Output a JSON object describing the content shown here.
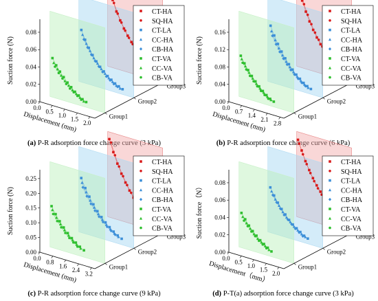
{
  "legend_series": [
    {
      "label": "CT-HA",
      "color": "#d81b1b",
      "marker": "square"
    },
    {
      "label": "SQ-HA",
      "color": "#d81b1b",
      "marker": "circle"
    },
    {
      "label": "CT-LA",
      "color": "#3c8fd8",
      "marker": "square"
    },
    {
      "label": "CC-HA",
      "color": "#3c8fd8",
      "marker": "triangle"
    },
    {
      "label": "CB-HA",
      "color": "#3c8fd8",
      "marker": "diamond"
    },
    {
      "label": "CT-VA",
      "color": "#2fbf2f",
      "marker": "square"
    },
    {
      "label": "CC-VA",
      "color": "#2fbf2f",
      "marker": "triangle"
    },
    {
      "label": "CB-VA",
      "color": "#2fbf2f",
      "marker": "circle"
    }
  ],
  "chart_data": [
    {
      "type": "scatter",
      "panel_letter": "(a)",
      "caption": "P-R adsorption force change curve (3 kPa)",
      "zlabel": "Suction force (N)",
      "xlabel": "Displacement (mm)",
      "z_ticks": [
        "0.00",
        "0.02",
        "0.04",
        "0.06",
        "0.08"
      ],
      "zlim": [
        0,
        0.095
      ],
      "x_ticks": [
        "0.0",
        "0.5",
        "1.0",
        "1.5",
        "2.0"
      ],
      "xlim": [
        0,
        2.2
      ],
      "groups": [
        "Group1",
        "Group2",
        "Group3"
      ],
      "series": [
        {
          "name": "CT-HA",
          "group": 3,
          "x": [
            0.05,
            0.2,
            0.35,
            0.5,
            0.65,
            0.8,
            0.95,
            1.1,
            1.25,
            1.4,
            1.55,
            1.7,
            1.85,
            2.0
          ],
          "y": [
            0.089,
            0.078,
            0.066,
            0.057,
            0.049,
            0.042,
            0.036,
            0.03,
            0.025,
            0.02,
            0.016,
            0.012,
            0.008,
            0.006
          ]
        },
        {
          "name": "SQ-HA",
          "group": 3,
          "x": [
            0.1,
            0.25,
            0.4,
            0.55,
            0.7,
            0.85,
            1.0,
            1.15,
            1.3,
            1.45,
            1.6,
            1.75,
            1.9
          ],
          "y": [
            0.086,
            0.075,
            0.064,
            0.055,
            0.047,
            0.04,
            0.034,
            0.028,
            0.023,
            0.018,
            0.014,
            0.01,
            0.007
          ]
        },
        {
          "name": "CT-LA",
          "group": 2,
          "x": [
            0.1,
            0.25,
            0.4,
            0.55,
            0.7,
            0.85,
            1.0,
            1.15,
            1.3,
            1.45,
            1.6,
            1.75
          ],
          "y": [
            0.06,
            0.05,
            0.042,
            0.035,
            0.029,
            0.024,
            0.02,
            0.016,
            0.013,
            0.01,
            0.008,
            0.006
          ]
        },
        {
          "name": "CC-HA",
          "group": 2,
          "x": [
            0.15,
            0.3,
            0.45,
            0.6,
            0.75,
            0.9,
            1.05,
            1.2,
            1.35,
            1.5,
            1.65
          ],
          "y": [
            0.055,
            0.046,
            0.039,
            0.032,
            0.027,
            0.022,
            0.018,
            0.014,
            0.011,
            0.008,
            0.006
          ]
        },
        {
          "name": "CB-HA",
          "group": 2,
          "x": [
            0.2,
            0.35,
            0.5,
            0.65,
            0.8,
            0.95,
            1.1,
            1.25,
            1.4,
            1.55
          ],
          "y": [
            0.05,
            0.042,
            0.035,
            0.029,
            0.024,
            0.019,
            0.015,
            0.012,
            0.009,
            0.007
          ]
        },
        {
          "name": "CT-VA",
          "group": 1,
          "x": [
            0.1,
            0.25,
            0.4,
            0.55,
            0.7,
            0.85,
            1.0,
            1.15,
            1.3,
            1.45
          ],
          "y": [
            0.045,
            0.038,
            0.032,
            0.027,
            0.022,
            0.018,
            0.014,
            0.011,
            0.008,
            0.006
          ]
        },
        {
          "name": "CC-VA",
          "group": 1,
          "x": [
            0.15,
            0.3,
            0.45,
            0.6,
            0.75,
            0.9,
            1.05,
            1.2,
            1.35
          ],
          "y": [
            0.04,
            0.034,
            0.028,
            0.023,
            0.019,
            0.015,
            0.012,
            0.009,
            0.006
          ]
        },
        {
          "name": "CB-VA",
          "group": 1,
          "x": [
            0.2,
            0.35,
            0.5,
            0.65,
            0.8,
            0.95,
            1.1,
            1.25
          ],
          "y": [
            0.036,
            0.03,
            0.025,
            0.02,
            0.016,
            0.013,
            0.01,
            0.007
          ]
        }
      ]
    },
    {
      "type": "scatter",
      "panel_letter": "(b)",
      "caption": "P-R adsorption force change curve (6 kPa)",
      "zlabel": "Suction force (N)",
      "xlabel": "Displacement (mm)",
      "z_ticks": [
        "0.00",
        "0.04",
        "0.08",
        "0.12",
        "0.16"
      ],
      "zlim": [
        0,
        0.19
      ],
      "x_ticks": [
        "0.0",
        "0.7",
        "1.4",
        "2.1",
        "2.8"
      ],
      "xlim": [
        0,
        3.0
      ],
      "groups": [
        "Group1",
        "Group2",
        "Group3"
      ],
      "series": [
        {
          "name": "CT-HA",
          "group": 3,
          "x": [
            0.1,
            0.3,
            0.5,
            0.7,
            0.9,
            1.1,
            1.3,
            1.5,
            1.7,
            1.9,
            2.1,
            2.3,
            2.5,
            2.7
          ],
          "y": [
            0.18,
            0.155,
            0.132,
            0.112,
            0.095,
            0.08,
            0.067,
            0.056,
            0.046,
            0.037,
            0.029,
            0.022,
            0.016,
            0.012
          ]
        },
        {
          "name": "SQ-HA",
          "group": 3,
          "x": [
            0.2,
            0.4,
            0.6,
            0.8,
            1.0,
            1.2,
            1.4,
            1.6,
            1.8,
            2.0,
            2.2,
            2.4,
            2.6
          ],
          "y": [
            0.172,
            0.148,
            0.126,
            0.107,
            0.09,
            0.076,
            0.063,
            0.052,
            0.042,
            0.034,
            0.026,
            0.019,
            0.014
          ]
        },
        {
          "name": "CT-LA",
          "group": 2,
          "x": [
            0.15,
            0.35,
            0.55,
            0.75,
            0.95,
            1.15,
            1.35,
            1.55,
            1.75,
            1.95,
            2.15,
            2.35
          ],
          "y": [
            0.13,
            0.11,
            0.093,
            0.078,
            0.065,
            0.054,
            0.044,
            0.035,
            0.028,
            0.021,
            0.016,
            0.012
          ]
        },
        {
          "name": "CC-HA",
          "group": 2,
          "x": [
            0.2,
            0.4,
            0.6,
            0.8,
            1.0,
            1.2,
            1.4,
            1.6,
            1.8,
            2.0,
            2.2
          ],
          "y": [
            0.118,
            0.1,
            0.084,
            0.07,
            0.058,
            0.048,
            0.039,
            0.031,
            0.024,
            0.018,
            0.013
          ]
        },
        {
          "name": "CB-HA",
          "group": 2,
          "x": [
            0.25,
            0.45,
            0.65,
            0.85,
            1.05,
            1.25,
            1.45,
            1.65,
            1.85,
            2.05
          ],
          "y": [
            0.108,
            0.091,
            0.076,
            0.063,
            0.052,
            0.042,
            0.034,
            0.027,
            0.02,
            0.015
          ]
        },
        {
          "name": "CT-VA",
          "group": 1,
          "x": [
            0.1,
            0.3,
            0.5,
            0.7,
            0.9,
            1.1,
            1.3,
            1.5,
            1.7,
            1.9
          ],
          "y": [
            0.095,
            0.08,
            0.067,
            0.056,
            0.046,
            0.037,
            0.029,
            0.022,
            0.016,
            0.012
          ]
        },
        {
          "name": "CC-VA",
          "group": 1,
          "x": [
            0.15,
            0.35,
            0.55,
            0.75,
            0.95,
            1.15,
            1.35,
            1.55,
            1.75
          ],
          "y": [
            0.088,
            0.074,
            0.062,
            0.051,
            0.041,
            0.033,
            0.026,
            0.019,
            0.014
          ]
        },
        {
          "name": "CB-VA",
          "group": 1,
          "x": [
            0.2,
            0.4,
            0.6,
            0.8,
            1.0,
            1.2,
            1.4,
            1.6
          ],
          "y": [
            0.08,
            0.067,
            0.055,
            0.045,
            0.036,
            0.028,
            0.021,
            0.015
          ]
        }
      ]
    },
    {
      "type": "scatter",
      "panel_letter": "(c)",
      "caption": "P-R adsorption force change curve (9 kPa)",
      "zlabel": "Suction force (N)",
      "xlabel": "Displacement (mm)",
      "z_ticks": [
        "0.00",
        "0.05",
        "0.10",
        "0.15",
        "0.20",
        "0.25"
      ],
      "zlim": [
        0,
        0.28
      ],
      "x_ticks": [
        "0.0",
        "0.8",
        "1.6",
        "2.4",
        "3.2"
      ],
      "xlim": [
        0,
        3.4
      ],
      "groups": [
        "Group1",
        "Group2",
        "Group3"
      ],
      "series": [
        {
          "name": "CT-HA",
          "group": 3,
          "x": [
            0.1,
            0.35,
            0.6,
            0.85,
            1.1,
            1.35,
            1.6,
            1.85,
            2.1,
            2.35,
            2.6,
            2.85,
            3.1
          ],
          "y": [
            0.265,
            0.225,
            0.19,
            0.16,
            0.134,
            0.111,
            0.091,
            0.074,
            0.059,
            0.046,
            0.035,
            0.026,
            0.019
          ]
        },
        {
          "name": "SQ-HA",
          "group": 3,
          "x": [
            0.2,
            0.45,
            0.7,
            0.95,
            1.2,
            1.45,
            1.7,
            1.95,
            2.2,
            2.45,
            2.7,
            2.95
          ],
          "y": [
            0.255,
            0.216,
            0.182,
            0.153,
            0.127,
            0.105,
            0.086,
            0.069,
            0.055,
            0.042,
            0.032,
            0.023
          ]
        },
        {
          "name": "CT-LA",
          "group": 2,
          "x": [
            0.15,
            0.4,
            0.65,
            0.9,
            1.15,
            1.4,
            1.65,
            1.9,
            2.15,
            2.4,
            2.65
          ],
          "y": [
            0.185,
            0.155,
            0.13,
            0.108,
            0.089,
            0.073,
            0.059,
            0.047,
            0.036,
            0.027,
            0.02
          ]
        },
        {
          "name": "CC-HA",
          "group": 2,
          "x": [
            0.2,
            0.45,
            0.7,
            0.95,
            1.2,
            1.45,
            1.7,
            1.95,
            2.2,
            2.45
          ],
          "y": [
            0.17,
            0.142,
            0.118,
            0.098,
            0.08,
            0.065,
            0.052,
            0.041,
            0.031,
            0.023
          ]
        },
        {
          "name": "CB-HA",
          "group": 2,
          "x": [
            0.25,
            0.5,
            0.75,
            1.0,
            1.25,
            1.5,
            1.75,
            2.0,
            2.25
          ],
          "y": [
            0.155,
            0.129,
            0.107,
            0.088,
            0.072,
            0.058,
            0.046,
            0.036,
            0.027
          ]
        },
        {
          "name": "CT-VA",
          "group": 1,
          "x": [
            0.1,
            0.35,
            0.6,
            0.85,
            1.1,
            1.35,
            1.6,
            1.85,
            2.1
          ],
          "y": [
            0.14,
            0.117,
            0.097,
            0.08,
            0.065,
            0.052,
            0.041,
            0.031,
            0.023
          ]
        },
        {
          "name": "CC-VA",
          "group": 1,
          "x": [
            0.15,
            0.4,
            0.65,
            0.9,
            1.15,
            1.4,
            1.65,
            1.9
          ],
          "y": [
            0.128,
            0.106,
            0.088,
            0.072,
            0.058,
            0.046,
            0.035,
            0.026
          ]
        },
        {
          "name": "CB-VA",
          "group": 1,
          "x": [
            0.2,
            0.45,
            0.7,
            0.95,
            1.2,
            1.45,
            1.7
          ],
          "y": [
            0.115,
            0.095,
            0.078,
            0.063,
            0.05,
            0.039,
            0.029
          ]
        }
      ]
    },
    {
      "type": "scatter",
      "panel_letter": "(d)",
      "caption": "P-T(a) adsorption force change curve (3 kPa)",
      "zlabel": "Suction force（N）",
      "xlabel": "Displacement（mm）",
      "z_ticks": [
        "0.00",
        "0.02",
        "0.04",
        "0.06",
        "0.08"
      ],
      "zlim": [
        0,
        0.095
      ],
      "x_ticks": [
        "0.0",
        "0.5",
        "1.0",
        "1.5",
        "2.0"
      ],
      "xlim": [
        0,
        2.2
      ],
      "groups": [
        "Group1",
        "Group2",
        "Group3"
      ],
      "series": [
        {
          "name": "CT-HA",
          "group": 3,
          "x": [
            0.05,
            0.2,
            0.35,
            0.5,
            0.65,
            0.8,
            0.95,
            1.1,
            1.25,
            1.4,
            1.55,
            1.7,
            1.85,
            2.0
          ],
          "y": [
            0.089,
            0.078,
            0.067,
            0.058,
            0.05,
            0.043,
            0.037,
            0.031,
            0.026,
            0.021,
            0.017,
            0.013,
            0.01,
            0.007
          ]
        },
        {
          "name": "SQ-HA",
          "group": 3,
          "x": [
            0.1,
            0.25,
            0.4,
            0.55,
            0.7,
            0.85,
            1.0,
            1.15,
            1.3,
            1.45,
            1.6,
            1.75,
            1.9
          ],
          "y": [
            0.085,
            0.074,
            0.064,
            0.055,
            0.047,
            0.04,
            0.034,
            0.029,
            0.024,
            0.019,
            0.015,
            0.011,
            0.008
          ]
        },
        {
          "name": "CT-LA",
          "group": 2,
          "x": [
            0.1,
            0.25,
            0.4,
            0.55,
            0.7,
            0.85,
            1.0,
            1.15,
            1.3,
            1.45,
            1.6
          ],
          "y": [
            0.052,
            0.044,
            0.037,
            0.031,
            0.026,
            0.021,
            0.017,
            0.014,
            0.011,
            0.008,
            0.006
          ]
        },
        {
          "name": "CC-HA",
          "group": 2,
          "x": [
            0.15,
            0.3,
            0.45,
            0.6,
            0.75,
            0.9,
            1.05,
            1.2,
            1.35,
            1.5
          ],
          "y": [
            0.048,
            0.04,
            0.034,
            0.028,
            0.023,
            0.019,
            0.015,
            0.012,
            0.009,
            0.007
          ]
        },
        {
          "name": "CB-HA",
          "group": 2,
          "x": [
            0.2,
            0.35,
            0.5,
            0.65,
            0.8,
            0.95,
            1.1,
            1.25,
            1.4
          ],
          "y": [
            0.044,
            0.037,
            0.031,
            0.025,
            0.021,
            0.017,
            0.013,
            0.01,
            0.007
          ]
        },
        {
          "name": "CT-VA",
          "group": 1,
          "x": [
            0.1,
            0.25,
            0.4,
            0.55,
            0.7,
            0.85,
            1.0,
            1.15,
            1.3
          ],
          "y": [
            0.04,
            0.034,
            0.028,
            0.023,
            0.019,
            0.015,
            0.012,
            0.009,
            0.006
          ]
        },
        {
          "name": "CC-VA",
          "group": 1,
          "x": [
            0.15,
            0.3,
            0.45,
            0.6,
            0.75,
            0.9,
            1.05,
            1.2
          ],
          "y": [
            0.036,
            0.03,
            0.025,
            0.02,
            0.016,
            0.013,
            0.01,
            0.007
          ]
        },
        {
          "name": "CB-VA",
          "group": 1,
          "x": [
            0.2,
            0.35,
            0.5,
            0.65,
            0.8,
            0.95,
            1.1
          ],
          "y": [
            0.032,
            0.027,
            0.022,
            0.018,
            0.014,
            0.011,
            0.008
          ]
        }
      ]
    }
  ]
}
